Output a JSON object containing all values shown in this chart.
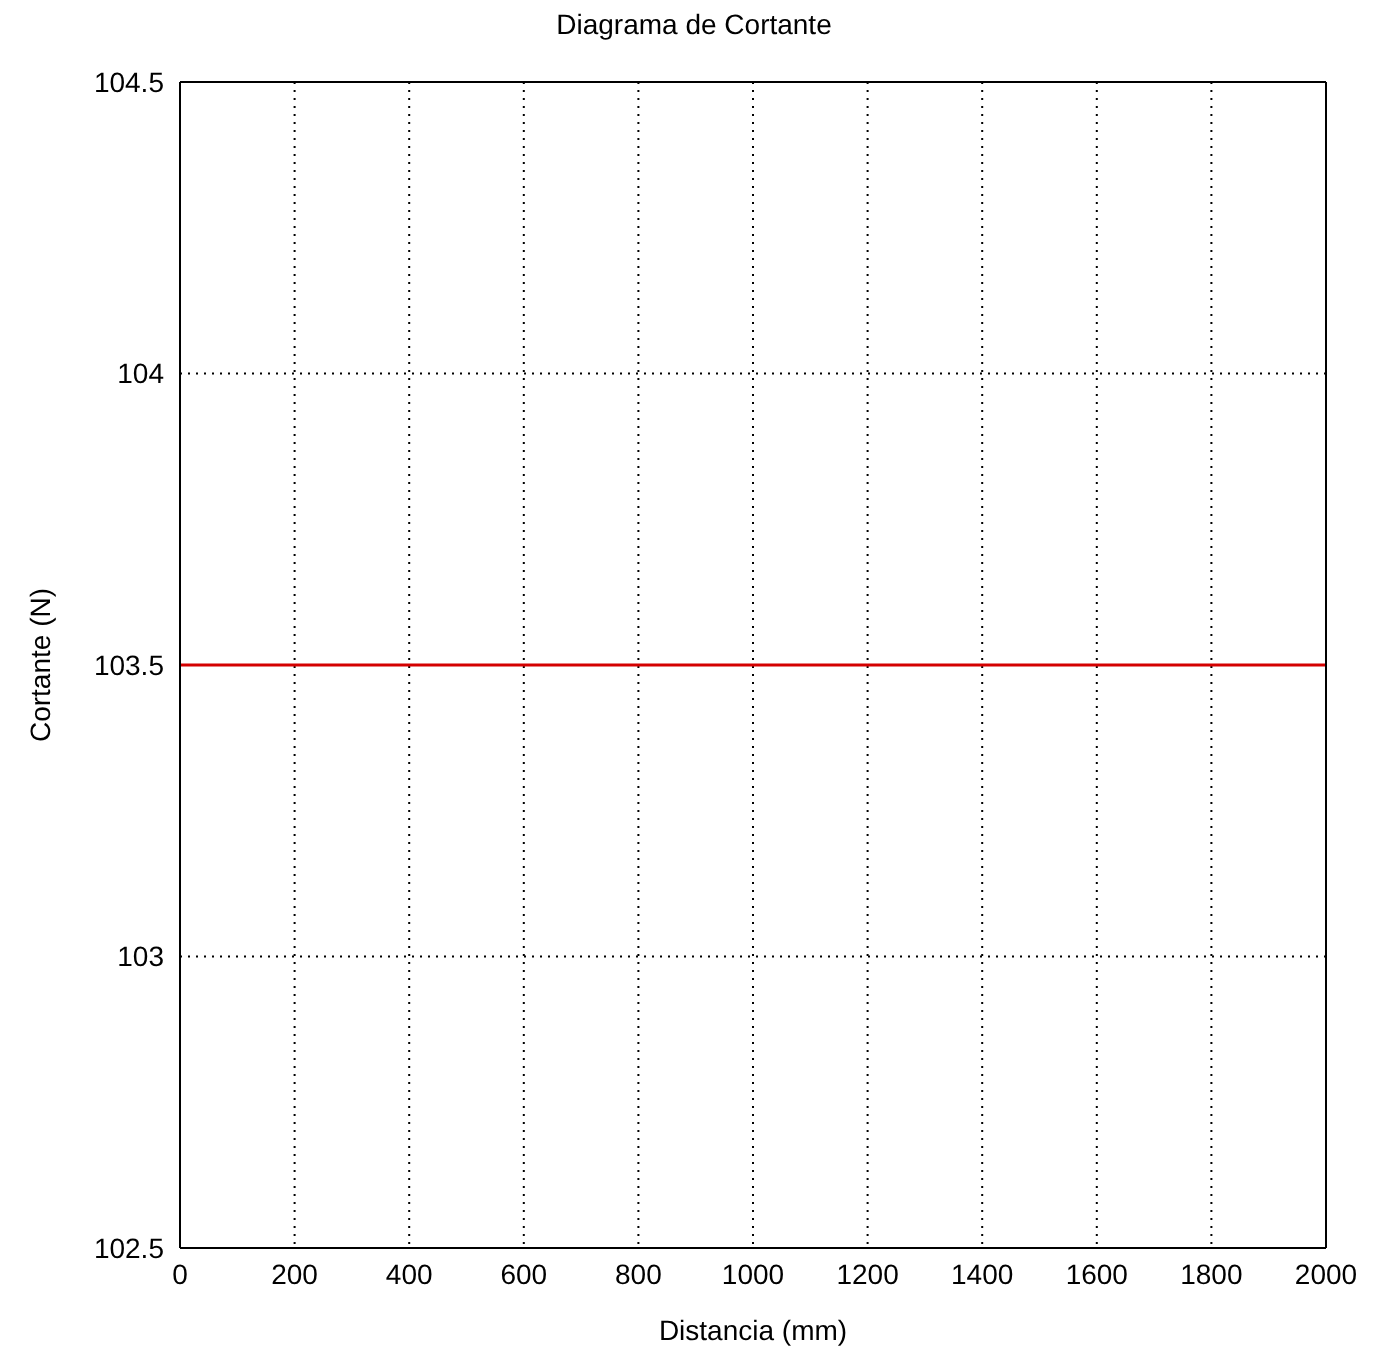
{
  "chart_data": {
    "type": "line",
    "title": "Diagrama de Cortante",
    "xlabel": "Distancia (mm)",
    "ylabel": "Cortante (N)",
    "x": [
      0,
      2000
    ],
    "series": [
      {
        "color": "#d40000",
        "values": [
          103.5,
          103.5
        ]
      }
    ],
    "xlim": [
      0,
      2000
    ],
    "xticks": [
      0,
      200,
      400,
      600,
      800,
      1000,
      1200,
      1400,
      1600,
      1800,
      2000
    ],
    "ylim": [
      102.5,
      104.5
    ],
    "yticks": [
      102.5,
      103,
      103.5,
      104,
      104.5
    ],
    "grid": true,
    "legend": false,
    "marker": "none",
    "line_style": "solid"
  }
}
